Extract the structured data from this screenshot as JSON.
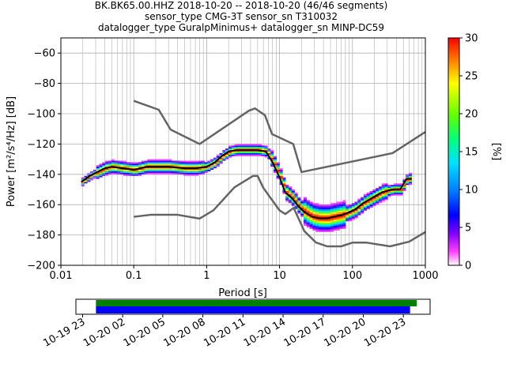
{
  "header": {
    "line1": "BK.BK65.00.HHZ   2018-10-20 -- 2018-10-20  (46/46 segments)",
    "line2": "sensor_type CMG-3T sensor_sn T310032",
    "line3": "datalogger_type GuralpMinimus+ datalogger_sn MINP-DC59"
  },
  "chart_data": [
    {
      "type": "heatmap",
      "title": "BK.BK65.00.HHZ   2018-10-20 -- 2018-10-20  (46/46 segments)",
      "xlabel": "Period [s]",
      "ylabel": "Power [m²/s⁴/Hz] [dB]",
      "x_scale": "log",
      "xlim": [
        0.01,
        1000
      ],
      "ylim": [
        -200,
        -50
      ],
      "x_ticks": [
        0.01,
        0.1,
        1,
        10,
        100,
        1000
      ],
      "x_tick_labels": [
        "0.01",
        "0.1",
        "1",
        "10",
        "100",
        "1000"
      ],
      "y_ticks": [
        -200,
        -180,
        -160,
        -140,
        -120,
        -100,
        -80,
        -60
      ],
      "y_tick_labels": [
        "−200",
        "−180",
        "−160",
        "−140",
        "−120",
        "−100",
        "−80",
        "−60"
      ],
      "grid": true,
      "colorbar": {
        "label": "[%]",
        "range": [
          0,
          30
        ],
        "ticks": [
          0,
          5,
          10,
          15,
          20,
          25,
          30
        ],
        "tick_labels": [
          "0",
          "5",
          "10",
          "15",
          "20",
          "25",
          "30"
        ]
      },
      "series": [
        {
          "role": "mean",
          "color": "#000000",
          "x": [
            0.019,
            0.025,
            0.03,
            0.04,
            0.05,
            0.07,
            0.1,
            0.15,
            0.2,
            0.3,
            0.5,
            0.7,
            1.0,
            1.3,
            1.6,
            2.0,
            2.5,
            3.0,
            4.0,
            5.0,
            6.5,
            8.0,
            10,
            12,
            15,
            18,
            22,
            28,
            35,
            45,
            55,
            70,
            90,
            110,
            140,
            180,
            250,
            350,
            450,
            550,
            650
          ],
          "y": [
            -145,
            -141,
            -139,
            -136,
            -135,
            -136,
            -137,
            -135,
            -135,
            -135,
            -136,
            -136,
            -135,
            -132,
            -128,
            -125,
            -124,
            -124,
            -124,
            -124,
            -125,
            -132,
            -142,
            -152,
            -156,
            -161,
            -165,
            -168,
            -169,
            -169,
            -168,
            -167,
            -165,
            -163,
            -159,
            -156,
            -152,
            -150,
            -150,
            -143,
            -143
          ]
        },
        {
          "role": "new-high-noise-model",
          "color": "#646464",
          "x": [
            0.1,
            0.22,
            0.32,
            0.8,
            3.8,
            4.6,
            6.3,
            7.9,
            15.4,
            20,
            354.8,
            1000
          ],
          "y": [
            -91.5,
            -97.4,
            -110.5,
            -120,
            -98,
            -96.5,
            -101,
            -113.5,
            -120,
            -138.5,
            -126,
            -112
          ]
        },
        {
          "role": "new-low-noise-model",
          "color": "#646464",
          "x": [
            0.1,
            0.17,
            0.4,
            0.8,
            1.24,
            2.4,
            4.3,
            5.0,
            6.0,
            10,
            12,
            15.6,
            21.9,
            31.6,
            45,
            70,
            101,
            154,
            328,
            600,
            1000
          ],
          "y": [
            -168,
            -166.7,
            -166.7,
            -169.2,
            -163.7,
            -148.6,
            -141.1,
            -141.1,
            -149,
            -163.8,
            -166.2,
            -162.1,
            -177.5,
            -185,
            -187.5,
            -187.5,
            -185,
            -185,
            -187.5,
            -184.4,
            -178
          ]
        }
      ]
    },
    {
      "type": "bar",
      "xlabel": "",
      "ylabel": "",
      "x_tick_labels": [
        "10-19 23",
        "10-20 02",
        "10-20 05",
        "10-20 08",
        "10-20 11",
        "10-20 14",
        "10-20 17",
        "10-20 20",
        "10-20 23"
      ],
      "x_ticks": [
        "2018-10-19 23:00",
        "2018-10-20 02:00",
        "2018-10-20 05:00",
        "2018-10-20 08:00",
        "2018-10-20 11:00",
        "2018-10-20 14:00",
        "2018-10-20 17:00",
        "2018-10-20 20:00",
        "2018-10-20 23:00"
      ],
      "xlim": [
        "2018-10-19 22:30",
        "2018-10-21 01:00"
      ],
      "series": [
        {
          "role": "data-coverage",
          "color": "#008000",
          "start": "2018-10-20 00:00",
          "end": "2018-10-21 00:00"
        },
        {
          "role": "psd-segments",
          "color": "#0000ff",
          "start": "2018-10-20 00:00",
          "end": "2018-10-20 23:30"
        }
      ]
    }
  ]
}
